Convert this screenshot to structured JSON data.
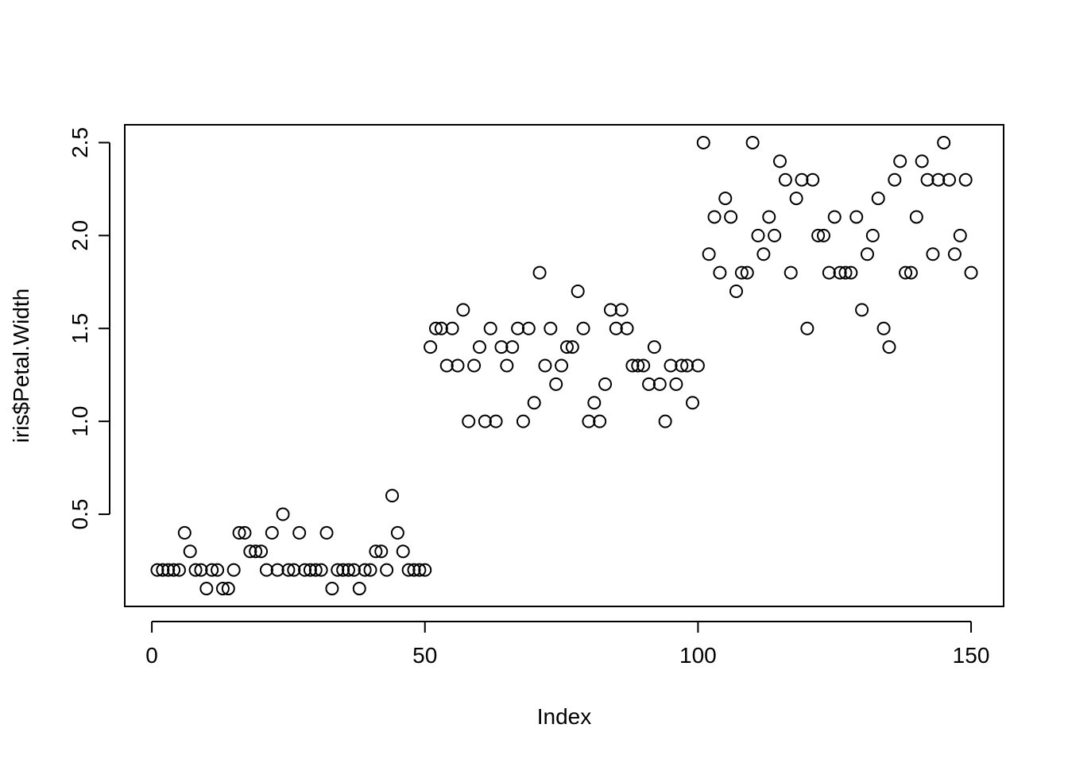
{
  "chart_data": {
    "type": "scatter",
    "title": "",
    "xlabel": "Index",
    "ylabel": "iris$Petal.Width",
    "xlim": [
      -4.96,
      155.96
    ],
    "ylim": [
      0.004,
      2.596
    ],
    "x_ticks": [
      0,
      50,
      100,
      150
    ],
    "x_tick_labels": [
      "0",
      "50",
      "100",
      "150"
    ],
    "y_ticks": [
      0.5,
      1.0,
      1.5,
      2.0,
      2.5
    ],
    "y_tick_labels": [
      "0.5",
      "1.0",
      "1.5",
      "2.0",
      "2.5"
    ],
    "grid": false,
    "marker": "open-circle",
    "series": [
      {
        "x": [
          1,
          2,
          3,
          4,
          5,
          6,
          7,
          8,
          9,
          10,
          11,
          12,
          13,
          14,
          15,
          16,
          17,
          18,
          19,
          20,
          21,
          22,
          23,
          24,
          25,
          26,
          27,
          28,
          29,
          30,
          31,
          32,
          33,
          34,
          35,
          36,
          37,
          38,
          39,
          40,
          41,
          42,
          43,
          44,
          45,
          46,
          47,
          48,
          49,
          50,
          51,
          52,
          53,
          54,
          55,
          56,
          57,
          58,
          59,
          60,
          61,
          62,
          63,
          64,
          65,
          66,
          67,
          68,
          69,
          70,
          71,
          72,
          73,
          74,
          75,
          76,
          77,
          78,
          79,
          80,
          81,
          82,
          83,
          84,
          85,
          86,
          87,
          88,
          89,
          90,
          91,
          92,
          93,
          94,
          95,
          96,
          97,
          98,
          99,
          100,
          101,
          102,
          103,
          104,
          105,
          106,
          107,
          108,
          109,
          110,
          111,
          112,
          113,
          114,
          115,
          116,
          117,
          118,
          119,
          120,
          121,
          122,
          123,
          124,
          125,
          126,
          127,
          128,
          129,
          130,
          131,
          132,
          133,
          134,
          135,
          136,
          137,
          138,
          139,
          140,
          141,
          142,
          143,
          144,
          145,
          146,
          147,
          148,
          149,
          150
        ],
        "y": [
          0.2,
          0.2,
          0.2,
          0.2,
          0.2,
          0.4,
          0.3,
          0.2,
          0.2,
          0.1,
          0.2,
          0.2,
          0.1,
          0.1,
          0.2,
          0.4,
          0.4,
          0.3,
          0.3,
          0.3,
          0.2,
          0.4,
          0.2,
          0.5,
          0.2,
          0.2,
          0.4,
          0.2,
          0.2,
          0.2,
          0.2,
          0.4,
          0.1,
          0.2,
          0.2,
          0.2,
          0.2,
          0.1,
          0.2,
          0.2,
          0.3,
          0.3,
          0.2,
          0.6,
          0.4,
          0.3,
          0.2,
          0.2,
          0.2,
          0.2,
          1.4,
          1.5,
          1.5,
          1.3,
          1.5,
          1.3,
          1.6,
          1.0,
          1.3,
          1.4,
          1.0,
          1.5,
          1.0,
          1.4,
          1.3,
          1.4,
          1.5,
          1.0,
          1.5,
          1.1,
          1.8,
          1.3,
          1.5,
          1.2,
          1.3,
          1.4,
          1.4,
          1.7,
          1.5,
          1.0,
          1.1,
          1.0,
          1.2,
          1.6,
          1.5,
          1.6,
          1.5,
          1.3,
          1.3,
          1.3,
          1.2,
          1.4,
          1.2,
          1.0,
          1.3,
          1.2,
          1.3,
          1.3,
          1.1,
          1.3,
          2.5,
          1.9,
          2.1,
          1.8,
          2.2,
          2.1,
          1.7,
          1.8,
          1.8,
          2.5,
          2.0,
          1.9,
          2.1,
          2.0,
          2.4,
          2.3,
          1.8,
          2.2,
          2.3,
          1.5,
          2.3,
          2.0,
          2.0,
          1.8,
          2.1,
          1.8,
          1.8,
          1.8,
          2.1,
          1.6,
          1.9,
          2.0,
          2.2,
          1.5,
          1.4,
          2.3,
          2.4,
          1.8,
          1.8,
          2.1,
          2.4,
          2.3,
          1.9,
          2.3,
          2.5,
          2.3,
          1.9,
          2.0,
          2.3,
          1.8
        ]
      }
    ]
  }
}
